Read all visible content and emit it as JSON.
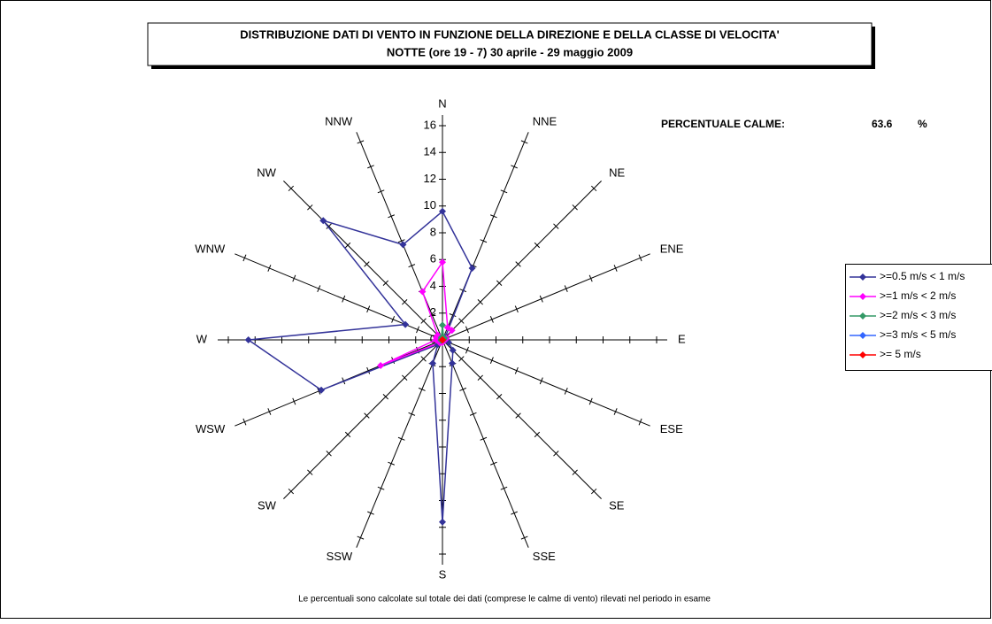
{
  "chart_data": {
    "type": "radar",
    "title": "DISTRIBUZIONE DATI DI VENTO IN FUNZIONE DELLA DIREZIONE E DELLA CLASSE DI VELOCITA'",
    "subtitle": "NOTTE (ore 19 - 7)  30 aprile - 29 maggio 2009",
    "categories": [
      "N",
      "NNE",
      "NE",
      "ENE",
      "E",
      "ESE",
      "SE",
      "SSE",
      "S",
      "SSW",
      "SW",
      "WSW",
      "W",
      "WNW",
      "NW",
      "NNW"
    ],
    "series": [
      {
        "name": ">=0.5 m/s < 1 m/s",
        "color": "#333399",
        "values": [
          9.6,
          5.8,
          0.3,
          0.2,
          0.3,
          0.5,
          1.1,
          1.9,
          13.6,
          1.9,
          0.5,
          9.8,
          14.5,
          3.0,
          12.6,
          7.7
        ]
      },
      {
        "name": ">=1 m/s < 2 m/s",
        "color": "#ff00ff",
        "values": [
          5.8,
          1.0,
          1.0,
          0.3,
          0.2,
          0.1,
          0.1,
          0.1,
          0.2,
          0.2,
          0.3,
          5.0,
          0.5,
          0.5,
          0.5,
          3.9
        ]
      },
      {
        "name": ">=2 m/s < 3 m/s",
        "color": "#339966",
        "values": [
          1.1,
          0.2,
          0.2,
          0.1,
          0,
          0,
          0,
          0,
          0,
          0,
          0,
          0.1,
          0.1,
          0,
          0.1,
          0.2
        ]
      },
      {
        "name": ">=3 m/s < 5 m/s",
        "color": "#3366ff",
        "values": [
          0,
          0,
          0,
          0,
          0,
          0,
          0,
          0,
          0,
          0,
          0,
          0,
          0,
          0,
          0,
          0
        ]
      },
      {
        "name": ">= 5 m/s",
        "color": "#ff0000",
        "values": [
          0,
          0,
          0,
          0,
          0,
          0,
          0,
          0,
          0,
          0,
          0,
          0,
          0,
          0,
          0,
          0
        ]
      }
    ],
    "ylim": [
      0,
      16
    ],
    "yticks": [
      0,
      2,
      4,
      6,
      8,
      10,
      12,
      14,
      16
    ],
    "calm_label": "PERCENTUALE CALME:",
    "calm_value": 63.6,
    "calm_unit": "%",
    "footnote": "Le percentuali sono calcolate sul totale dei dati (comprese le calme di vento) rilevati nel periodo in esame",
    "legend": "right"
  }
}
